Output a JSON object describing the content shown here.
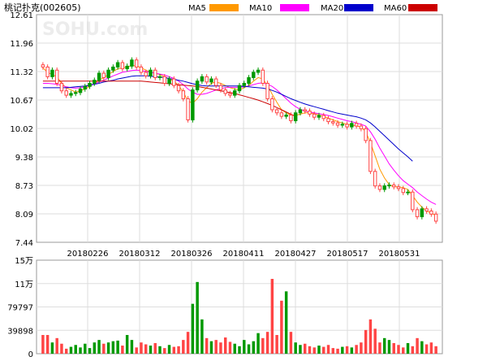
{
  "header": {
    "title": "桃记扑克(002605)",
    "legend": [
      {
        "label": "MA5",
        "color": "#FF9900"
      },
      {
        "label": "MA10",
        "color": "#FF00FF"
      },
      {
        "label": "MA20",
        "color": "#0000CC"
      },
      {
        "label": "MA60",
        "color": "#CC0000"
      }
    ]
  },
  "watermark": "SOHU.com",
  "chart_data": [
    {
      "type": "candlestick",
      "ylim": [
        7.44,
        12.61
      ],
      "yticks": [
        "12.61",
        "11.96",
        "11.32",
        "10.67",
        "10.02",
        "9.38",
        "8.73",
        "8.09",
        "7.44"
      ],
      "xticks": [
        "20180226",
        "20180312",
        "20180326",
        "20180411",
        "20180427",
        "20180517",
        "20180531"
      ],
      "grid": true,
      "up_color": "#009900",
      "down_color": "#FF4444",
      "close": [
        11.42,
        11.2,
        11.35,
        11.05,
        10.88,
        10.78,
        10.82,
        10.84,
        10.92,
        10.98,
        11.05,
        11.12,
        11.28,
        11.18,
        11.35,
        11.42,
        11.52,
        11.38,
        11.44,
        11.58,
        11.42,
        11.3,
        11.22,
        11.35,
        11.18,
        11.2,
        11.05,
        11.15,
        11.0,
        10.88,
        10.7,
        10.22,
        10.9,
        11.1,
        11.2,
        11.08,
        11.15,
        11.0,
        10.9,
        10.82,
        10.78,
        10.88,
        11.0,
        11.05,
        11.18,
        11.3,
        11.35,
        11.05,
        10.7,
        10.45,
        10.38,
        10.3,
        10.33,
        10.2,
        10.38,
        10.45,
        10.42,
        10.35,
        10.28,
        10.32,
        10.25,
        10.18,
        10.15,
        10.1,
        10.12,
        10.06,
        10.14,
        10.08,
        10.02,
        9.75,
        9.05,
        8.72,
        8.64,
        8.72,
        8.74,
        8.7,
        8.66,
        8.57,
        8.58,
        8.18,
        8.02,
        8.2,
        8.15,
        8.08,
        7.92
      ],
      "ma": {
        "MA5": [
          11.4,
          11.3,
          11.25,
          11.2,
          11.05,
          10.95,
          10.9,
          10.85,
          10.88,
          10.92,
          10.98,
          11.05,
          11.12,
          11.18,
          11.25,
          11.32,
          11.38,
          11.4,
          11.42,
          11.45,
          11.45,
          11.4,
          11.35,
          11.3,
          11.28,
          11.25,
          11.2,
          11.15,
          11.1,
          11.0,
          10.85,
          10.65,
          10.6,
          10.7,
          10.85,
          10.95,
          11.05,
          11.08,
          11.05,
          11.0,
          10.95,
          10.92,
          10.9,
          10.95,
          11.0,
          11.1,
          11.18,
          11.15,
          11.0,
          10.8,
          10.62,
          10.45,
          10.38,
          10.33,
          10.32,
          10.35,
          10.38,
          10.38,
          10.36,
          10.33,
          10.3,
          10.26,
          10.22,
          10.18,
          10.15,
          10.12,
          10.1,
          10.08,
          10.06,
          9.95,
          9.7,
          9.4,
          9.1,
          8.9,
          8.75,
          8.7,
          8.7,
          8.68,
          8.64,
          8.5,
          8.35,
          8.24,
          8.15,
          8.1,
          8.05
        ],
        "MA10": [
          11.05,
          11.05,
          11.04,
          11.03,
          11.0,
          10.97,
          10.95,
          10.94,
          10.95,
          10.97,
          11.0,
          11.04,
          11.08,
          11.12,
          11.17,
          11.22,
          11.26,
          11.3,
          11.32,
          11.34,
          11.35,
          11.34,
          11.32,
          11.3,
          11.28,
          11.26,
          11.24,
          11.2,
          11.16,
          11.1,
          11.02,
          10.92,
          10.85,
          10.8,
          10.8,
          10.82,
          10.86,
          10.9,
          10.93,
          10.95,
          10.96,
          10.96,
          10.96,
          10.97,
          10.99,
          11.02,
          11.05,
          11.06,
          11.03,
          10.98,
          10.9,
          10.8,
          10.7,
          10.6,
          10.52,
          10.46,
          10.42,
          10.4,
          10.38,
          10.36,
          10.34,
          10.32,
          10.29,
          10.26,
          10.23,
          10.2,
          10.18,
          10.15,
          10.12,
          10.08,
          9.95,
          9.78,
          9.58,
          9.4,
          9.22,
          9.08,
          8.95,
          8.84,
          8.76,
          8.68,
          8.58,
          8.5,
          8.42,
          8.35,
          8.3
        ],
        "MA20": [
          10.95,
          10.95,
          10.95,
          10.95,
          10.95,
          10.95,
          10.96,
          10.97,
          10.98,
          10.99,
          11.01,
          11.03,
          11.05,
          11.08,
          11.1,
          11.12,
          11.15,
          11.17,
          11.19,
          11.21,
          11.22,
          11.22,
          11.22,
          11.21,
          11.2,
          11.19,
          11.18,
          11.16,
          11.14,
          11.12,
          11.1,
          11.07,
          11.04,
          11.02,
          11.0,
          10.99,
          10.99,
          10.99,
          10.99,
          10.99,
          10.99,
          10.99,
          10.99,
          10.98,
          10.97,
          10.96,
          10.95,
          10.94,
          10.92,
          10.89,
          10.85,
          10.8,
          10.75,
          10.7,
          10.66,
          10.62,
          10.58,
          10.55,
          10.52,
          10.49,
          10.46,
          10.43,
          10.4,
          10.37,
          10.35,
          10.33,
          10.31,
          10.29,
          10.26,
          10.22,
          10.15,
          10.06,
          9.96,
          9.86,
          9.76,
          9.66,
          9.56,
          9.47,
          9.38,
          9.28
        ],
        "MA60": [
          11.1,
          11.1,
          11.1,
          11.1,
          11.1,
          11.1,
          11.1,
          11.1,
          11.1,
          11.1,
          11.1,
          11.1,
          11.1,
          11.1,
          11.1,
          11.1,
          11.1,
          11.1,
          11.1,
          11.1,
          11.1,
          11.1,
          11.09,
          11.08,
          11.07,
          11.06,
          11.05,
          11.04,
          11.03,
          11.02,
          11.01,
          11.0,
          10.99,
          10.98,
          10.96,
          10.94,
          10.92,
          10.9,
          10.88,
          10.86,
          10.84,
          10.82,
          10.79,
          10.76,
          10.73,
          10.7,
          10.67,
          10.63,
          10.59,
          10.55,
          10.5,
          10.45,
          10.4,
          10.35,
          10.3
        ]
      }
    },
    {
      "type": "bar",
      "yticks": [
        "15万",
        "11万",
        "79797",
        "39898",
        "0"
      ],
      "ylim": [
        0,
        150000
      ],
      "volume": [
        30000,
        30000,
        18000,
        25000,
        16000,
        8000,
        11000,
        14000,
        10000,
        16000,
        9000,
        18000,
        22000,
        16000,
        18000,
        20000,
        21000,
        13000,
        30000,
        22000,
        10000,
        18000,
        15000,
        13000,
        17000,
        12000,
        9000,
        14000,
        11000,
        12000,
        22000,
        35000,
        80000,
        115000,
        55000,
        25000,
        20000,
        22000,
        18000,
        26000,
        19000,
        16000,
        12000,
        22000,
        15000,
        20000,
        33000,
        25000,
        35000,
        120000,
        30000,
        85000,
        100000,
        35000,
        18000,
        14000,
        16000,
        12000,
        10000,
        13000,
        11000,
        14000,
        9000,
        8000,
        11000,
        12000,
        10000,
        14000,
        18000,
        38000,
        55000,
        40000,
        18000,
        25000,
        22000,
        17000,
        14000,
        10000,
        17000,
        12000,
        25000,
        20000,
        15000,
        18000,
        12000
      ]
    }
  ]
}
